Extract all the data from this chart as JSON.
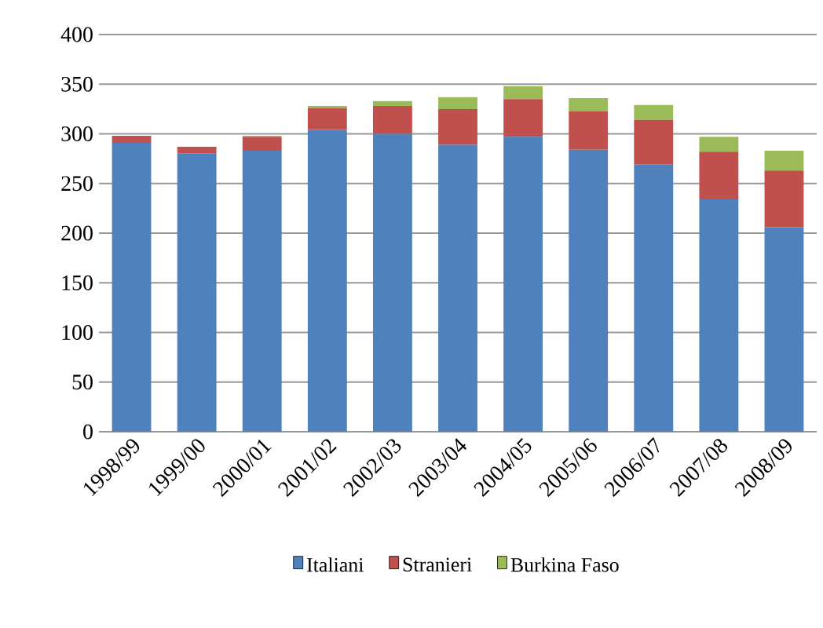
{
  "chart_data": {
    "type": "bar",
    "stacked": true,
    "categories": [
      "1998/99",
      "1999/00",
      "2000/01",
      "2001/02",
      "2002/03",
      "2003/04",
      "2004/05",
      "2005/06",
      "2006/07",
      "2007/08",
      "2008/09"
    ],
    "series": [
      {
        "name": "Italiani",
        "color": "#4f81bd",
        "values": [
          291,
          280,
          283,
          304,
          300,
          289,
          297,
          284,
          269,
          234,
          206
        ]
      },
      {
        "name": "Stranieri",
        "color": "#c0504d",
        "values": [
          7,
          7,
          14,
          22,
          28,
          36,
          38,
          39,
          45,
          48,
          57
        ]
      },
      {
        "name": "Burkina Faso",
        "color": "#9bbb59",
        "values": [
          0,
          0,
          1,
          2,
          5,
          12,
          13,
          13,
          15,
          15,
          20
        ]
      }
    ],
    "ylim": [
      0,
      400
    ],
    "yticks": [
      0,
      50,
      100,
      150,
      200,
      250,
      300,
      350,
      400
    ],
    "grid": "y",
    "legend": "bottom"
  }
}
